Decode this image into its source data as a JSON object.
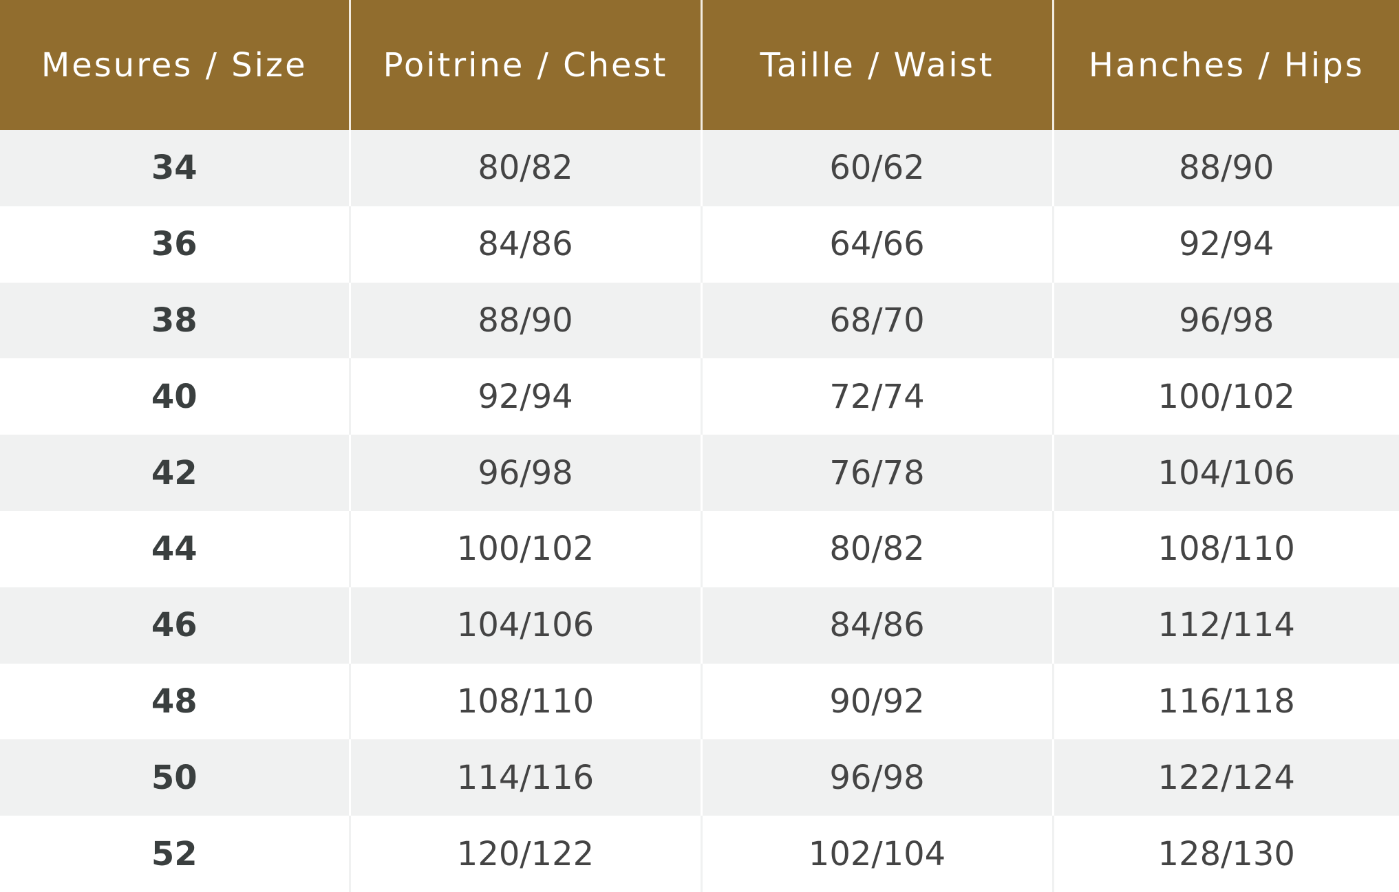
{
  "header_color": "#916d2e",
  "headers": [
    "Mesures / Size",
    "Poitrine / Chest",
    "Taille / Waist",
    "Hanches / Hips"
  ],
  "rows": [
    [
      "34",
      "80/82",
      "60/62",
      "88/90"
    ],
    [
      "36",
      "84/86",
      "64/66",
      "92/94"
    ],
    [
      "38",
      "88/90",
      "68/70",
      "96/98"
    ],
    [
      "40",
      "92/94",
      "72/74",
      "100/102"
    ],
    [
      "42",
      "96/98",
      "76/78",
      "104/106"
    ],
    [
      "44",
      "100/102",
      "80/82",
      "108/110"
    ],
    [
      "46",
      "104/106",
      "84/86",
      "112/114"
    ],
    [
      "48",
      "108/110",
      "90/92",
      "116/118"
    ],
    [
      "50",
      "114/116",
      "96/98",
      "122/124"
    ],
    [
      "52",
      "120/122",
      "102/104",
      "128/130"
    ]
  ]
}
